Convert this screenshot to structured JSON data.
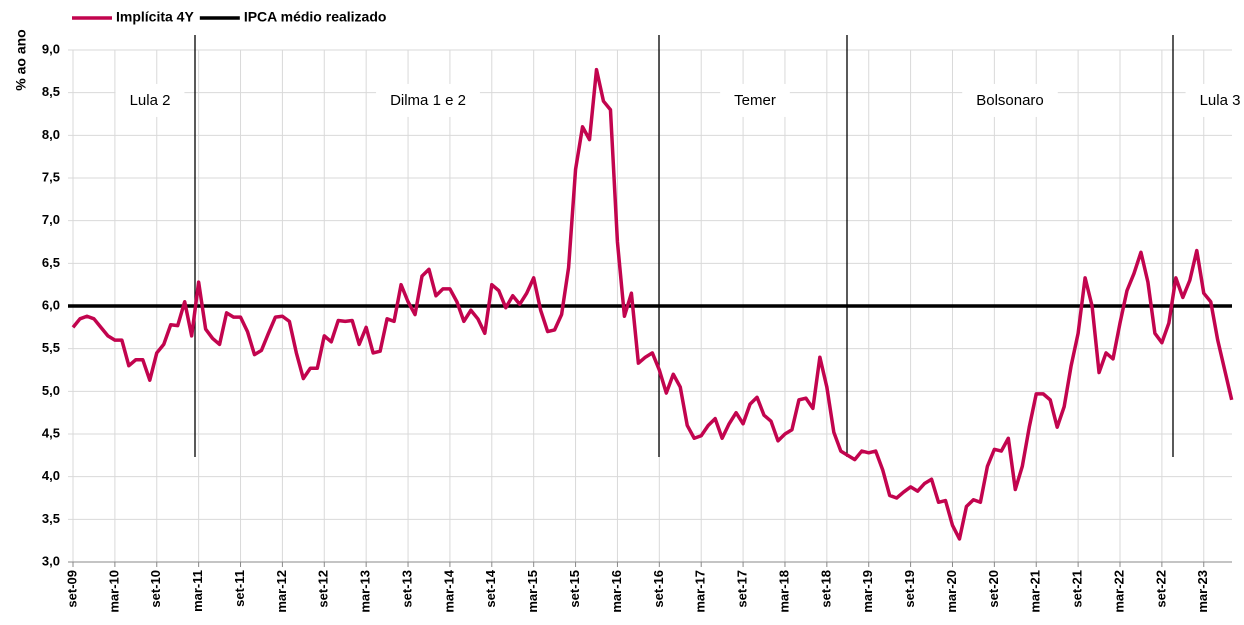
{
  "chart_data": {
    "type": "line",
    "y_label": "% ao ano",
    "categories": [
      "set-09",
      null,
      null,
      null,
      null,
      null,
      "mar-10",
      null,
      null,
      null,
      null,
      null,
      "set-10",
      null,
      null,
      null,
      null,
      null,
      "mar-11",
      null,
      null,
      null,
      null,
      null,
      "set-11",
      null,
      null,
      null,
      null,
      null,
      "mar-12",
      null,
      null,
      null,
      null,
      null,
      "set-12",
      null,
      null,
      null,
      null,
      null,
      "mar-13",
      null,
      null,
      null,
      null,
      null,
      "set-13",
      null,
      null,
      null,
      null,
      null,
      "mar-14",
      null,
      null,
      null,
      null,
      null,
      "set-14",
      null,
      null,
      null,
      null,
      null,
      "mar-15",
      null,
      null,
      null,
      null,
      null,
      "set-15",
      null,
      null,
      null,
      null,
      null,
      "mar-16",
      null,
      null,
      null,
      null,
      null,
      "set-16",
      null,
      null,
      null,
      null,
      null,
      "mar-17",
      null,
      null,
      null,
      null,
      null,
      "set-17",
      null,
      null,
      null,
      null,
      null,
      "mar-18",
      null,
      null,
      null,
      null,
      null,
      "set-18",
      null,
      null,
      null,
      null,
      null,
      "mar-19",
      null,
      null,
      null,
      null,
      null,
      "set-19",
      null,
      null,
      null,
      null,
      null,
      "mar-20",
      null,
      null,
      null,
      null,
      null,
      "set-20",
      null,
      null,
      null,
      null,
      null,
      "mar-21",
      null,
      null,
      null,
      null,
      null,
      "set-21",
      null,
      null,
      null,
      null,
      null,
      "mar-22",
      null,
      null,
      null,
      null,
      null,
      "set-22",
      null,
      null,
      null,
      null,
      null,
      "mar-23",
      null,
      null,
      null,
      null
    ],
    "series": [
      {
        "name": "Implícita 4Y",
        "color": "#c2044e",
        "values": [
          5.75,
          5.85,
          5.88,
          5.85,
          5.75,
          5.65,
          5.6,
          5.6,
          5.3,
          5.37,
          5.37,
          5.13,
          5.45,
          5.55,
          5.78,
          5.77,
          6.05,
          5.65,
          6.28,
          5.73,
          5.62,
          5.55,
          5.92,
          5.87,
          5.87,
          5.7,
          5.43,
          5.48,
          5.68,
          5.87,
          5.88,
          5.82,
          5.45,
          5.15,
          5.27,
          5.27,
          5.65,
          5.58,
          5.83,
          5.82,
          5.83,
          5.55,
          5.75,
          5.45,
          5.47,
          5.85,
          5.82,
          6.25,
          6.05,
          5.9,
          6.35,
          6.43,
          6.12,
          6.2,
          6.2,
          6.05,
          5.82,
          5.95,
          5.85,
          5.68,
          6.25,
          6.18,
          5.98,
          6.12,
          6.02,
          6.15,
          6.33,
          5.95,
          5.7,
          5.72,
          5.9,
          6.45,
          7.6,
          8.1,
          7.95,
          8.77,
          8.4,
          8.3,
          6.75,
          5.88,
          6.15,
          5.33,
          5.4,
          5.45,
          5.25,
          4.98,
          5.2,
          5.05,
          4.6,
          4.45,
          4.48,
          4.6,
          4.68,
          4.45,
          4.62,
          4.75,
          4.62,
          4.85,
          4.93,
          4.72,
          4.65,
          4.42,
          4.5,
          4.55,
          4.9,
          4.92,
          4.8,
          5.4,
          5.05,
          4.52,
          4.3,
          4.25,
          4.2,
          4.3,
          4.28,
          4.3,
          4.08,
          3.78,
          3.75,
          3.82,
          3.88,
          3.83,
          3.92,
          3.97,
          3.7,
          3.72,
          3.43,
          3.27,
          3.65,
          3.73,
          3.7,
          4.12,
          4.32,
          4.3,
          4.45,
          3.85,
          4.12,
          4.58,
          4.97,
          4.97,
          4.9,
          4.58,
          4.82,
          5.3,
          5.68,
          6.33,
          6.0,
          5.22,
          5.45,
          5.38,
          5.8,
          6.18,
          6.38,
          6.63,
          6.28,
          5.68,
          5.57,
          5.8,
          6.33,
          6.1,
          6.3,
          6.65,
          6.15,
          6.05,
          5.6,
          5.25,
          4.9
        ]
      }
    ],
    "reference_lines": [
      {
        "name": "IPCA médio realizado",
        "value": 6.0,
        "color": "#000000"
      }
    ],
    "annotations": [
      {
        "text": "Lula 2"
      },
      {
        "text": "Dilma 1 e 2"
      },
      {
        "text": "Temer"
      },
      {
        "text": "Bolsonaro"
      },
      {
        "text": "Lula 3"
      }
    ],
    "ylim": [
      3.0,
      9.0
    ],
    "yticks": [
      {
        "value": 3.0,
        "label": "3,0"
      },
      {
        "value": 3.5,
        "label": "3,5"
      },
      {
        "value": 4.0,
        "label": "4,0"
      },
      {
        "value": 4.5,
        "label": "4,5"
      },
      {
        "value": 5.0,
        "label": "5,0"
      },
      {
        "value": 5.5,
        "label": "5,5"
      },
      {
        "value": 6.0,
        "label": "6,0"
      },
      {
        "value": 6.5,
        "label": "6,5"
      },
      {
        "value": 7.0,
        "label": "7,0"
      },
      {
        "value": 7.5,
        "label": "7,5"
      },
      {
        "value": 8.0,
        "label": "8,0"
      },
      {
        "value": 8.5,
        "label": "8,5"
      },
      {
        "value": 9.0,
        "label": "9,0"
      }
    ],
    "grid": true
  }
}
